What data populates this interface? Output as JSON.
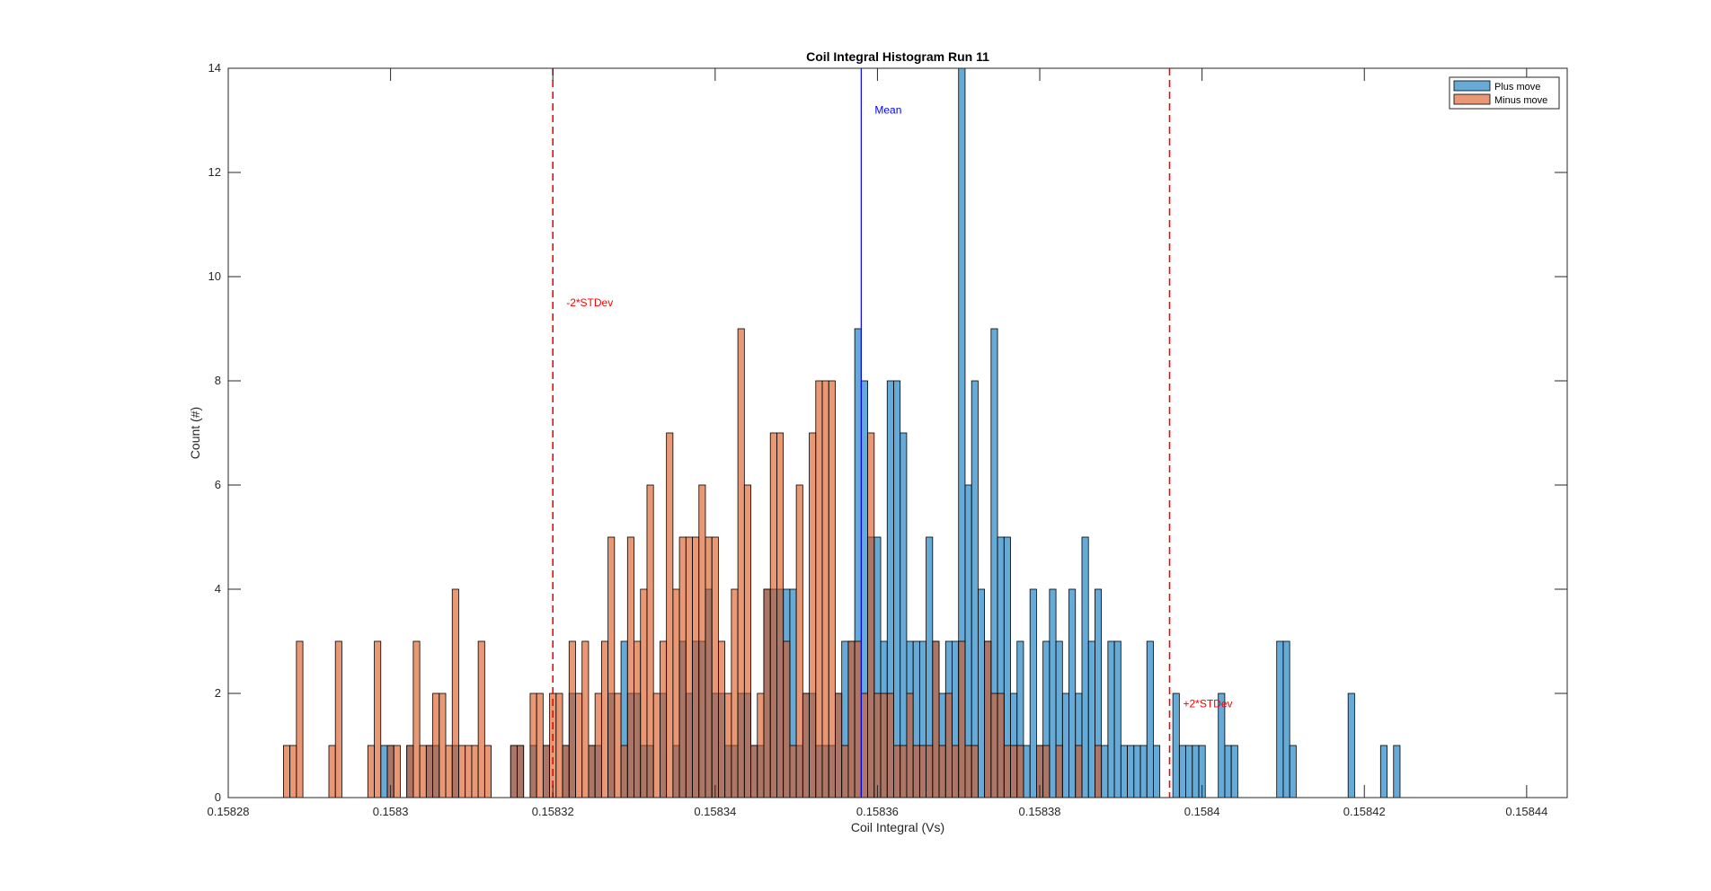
{
  "chart_data": {
    "type": "histogram",
    "title": "Coil Integral Histogram Run 11",
    "xlabel": "Coil Integral (Vs)",
    "ylabel": "Count (#)",
    "xlim": [
      0.15828,
      0.158445
    ],
    "ylim": [
      0,
      14
    ],
    "x_ticks": [
      0.15828,
      0.1583,
      0.15832,
      0.15834,
      0.15836,
      0.15838,
      0.1584,
      0.15842,
      0.15844
    ],
    "x_tick_labels": [
      "0.15828",
      "0.1583",
      "0.15832",
      "0.15834",
      "0.15836",
      "0.15838",
      "0.1584",
      "0.15842",
      "0.15844"
    ],
    "y_ticks": [
      0,
      2,
      4,
      6,
      8,
      10,
      12,
      14
    ],
    "y_tick_labels": [
      "0",
      "2",
      "4",
      "6",
      "8",
      "10",
      "12",
      "14"
    ],
    "bin_start": 0.1582868,
    "bin_width": 8e-07,
    "series": [
      {
        "name": "Plus move",
        "color": "#0072BD",
        "alpha": 0.6,
        "start_bin": 14,
        "counts": [
          0,
          1,
          1,
          0,
          0,
          1,
          0,
          0,
          1,
          1,
          0,
          0,
          1,
          0,
          0,
          0,
          0,
          0,
          0,
          0,
          0,
          1,
          1,
          0,
          1,
          0,
          1,
          0,
          0,
          1,
          2,
          0,
          0,
          1,
          1,
          0,
          2,
          0,
          3,
          2,
          2,
          1,
          1,
          0,
          2,
          0,
          1,
          3,
          2,
          3,
          3,
          4,
          2,
          2,
          1,
          1,
          2,
          2,
          1,
          1,
          4,
          4,
          4,
          4,
          4,
          1,
          2,
          2,
          1,
          1,
          1,
          2,
          3,
          3,
          9,
          8,
          5,
          5,
          3,
          8,
          8,
          7,
          3,
          3,
          3,
          5,
          3,
          2,
          3,
          3,
          14,
          6,
          8,
          4,
          3,
          9,
          5,
          5,
          2,
          3,
          1,
          4,
          1,
          3,
          4,
          3,
          2,
          4,
          2,
          5,
          3,
          4,
          1,
          3,
          3,
          1,
          1,
          1,
          1,
          3,
          1,
          0,
          0,
          2,
          1,
          1,
          1,
          1,
          0,
          0,
          2,
          1,
          1,
          0,
          0,
          0,
          0,
          0,
          0,
          3,
          3,
          1,
          0,
          0,
          0,
          0,
          0,
          0,
          0,
          0,
          2,
          0,
          0,
          0,
          0,
          1,
          0,
          1
        ]
      },
      {
        "name": "Minus move",
        "color": "#D95319",
        "alpha": 0.6,
        "start_bin": 0,
        "counts": [
          1,
          1,
          3,
          0,
          0,
          0,
          0,
          1,
          3,
          0,
          0,
          0,
          0,
          1,
          3,
          0,
          1,
          1,
          0,
          1,
          3,
          1,
          1,
          2,
          2,
          1,
          4,
          1,
          1,
          1,
          3,
          1,
          0,
          0,
          0,
          1,
          1,
          0,
          2,
          2,
          1,
          2,
          2,
          1,
          3,
          2,
          3,
          1,
          2,
          3,
          5,
          2,
          1,
          5,
          3,
          4,
          6,
          2,
          3,
          7,
          4,
          5,
          5,
          5,
          6,
          5,
          5,
          3,
          2,
          4,
          9,
          6,
          1,
          2,
          4,
          7,
          7,
          3,
          1,
          6,
          2,
          7,
          8,
          8,
          8,
          2,
          1,
          3,
          3,
          2,
          7,
          2,
          2,
          2,
          1,
          1,
          2,
          1,
          1,
          1,
          3,
          1,
          2,
          1,
          3,
          1,
          1,
          0,
          3,
          2,
          2,
          1,
          1,
          1,
          0,
          0,
          1,
          1,
          0,
          1,
          0,
          0,
          1,
          0,
          0,
          1
        ]
      }
    ],
    "annotations": [
      {
        "label": "Mean",
        "x": 0.158358,
        "style": "solid",
        "color": "#0000FF",
        "label_y": 13.2
      },
      {
        "label": "-2*STDev",
        "x": 0.15832,
        "style": "dashed",
        "color": "#FF0000",
        "label_y": 9.5
      },
      {
        "label": "+2*STDev",
        "x": 0.158396,
        "style": "dashed",
        "color": "#FF0000",
        "label_y": 1.8
      }
    ],
    "legend": {
      "position": "top-right",
      "entries": [
        "Plus move",
        "Minus move"
      ]
    },
    "grid": false
  }
}
